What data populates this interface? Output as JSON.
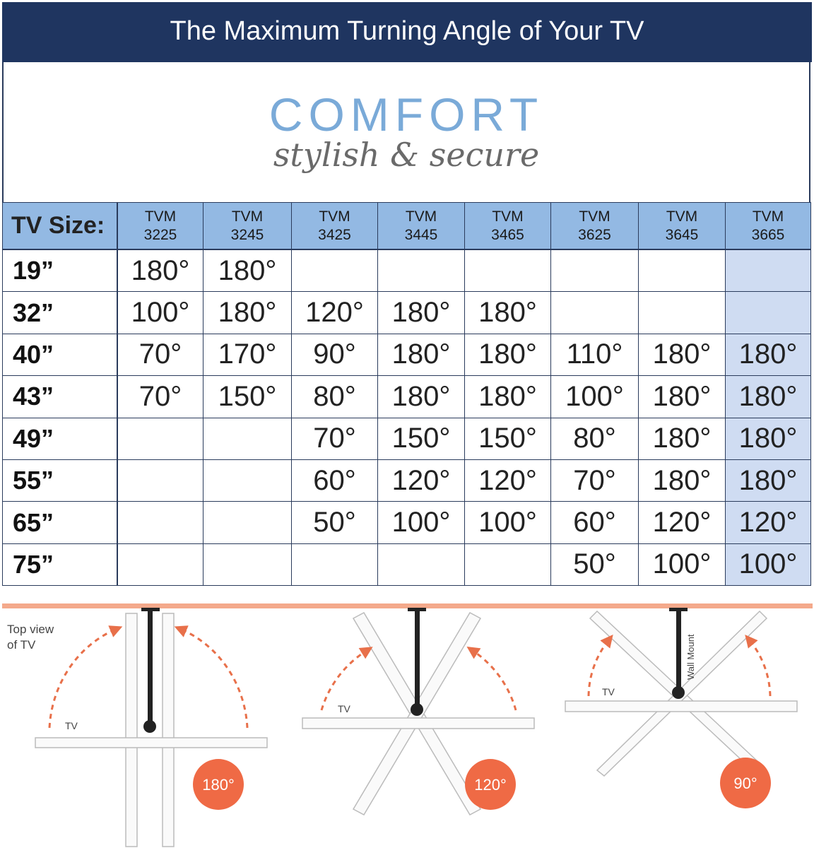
{
  "header": {
    "title": "The Maximum Turning Angle of Your TV"
  },
  "logo": {
    "brand": "COMFORT",
    "tagline": "stylish & secure"
  },
  "table": {
    "header_label": "TV Size:",
    "columns": [
      {
        "line1": "TVM",
        "line2": "3225"
      },
      {
        "line1": "TVM",
        "line2": "3245"
      },
      {
        "line1": "TVM",
        "line2": "3425"
      },
      {
        "line1": "TVM",
        "line2": "3445"
      },
      {
        "line1": "TVM",
        "line2": "3465"
      },
      {
        "line1": "TVM",
        "line2": "3625"
      },
      {
        "line1": "TVM",
        "line2": "3645"
      },
      {
        "line1": "TVM",
        "line2": "3665"
      }
    ],
    "rows": [
      {
        "size": "19”",
        "cells": [
          "180°",
          "180°",
          null,
          null,
          null,
          null,
          null,
          null
        ]
      },
      {
        "size": "32”",
        "cells": [
          "100°",
          "180°",
          "120°",
          "180°",
          "180°",
          null,
          null,
          null
        ]
      },
      {
        "size": "40”",
        "cells": [
          "70°",
          "170°",
          "90°",
          "180°",
          "180°",
          "110°",
          "180°",
          "180°"
        ]
      },
      {
        "size": "43”",
        "cells": [
          "70°",
          "150°",
          "80°",
          "180°",
          "180°",
          "100°",
          "180°",
          "180°"
        ]
      },
      {
        "size": "49”",
        "cells": [
          null,
          null,
          "70°",
          "150°",
          "150°",
          "80°",
          "180°",
          "180°"
        ]
      },
      {
        "size": "55”",
        "cells": [
          null,
          null,
          "60°",
          "120°",
          "120°",
          "70°",
          "180°",
          "180°"
        ]
      },
      {
        "size": "65”",
        "cells": [
          null,
          null,
          "50°",
          "100°",
          "100°",
          "60°",
          "120°",
          "120°"
        ]
      },
      {
        "size": "75”",
        "cells": [
          null,
          null,
          null,
          null,
          null,
          "50°",
          "100°",
          "100°"
        ]
      }
    ]
  },
  "diagrams": [
    {
      "caption_line1": "Top view",
      "caption_line2": "of TV",
      "tv_label": "TV",
      "angle": "180°"
    },
    {
      "tv_label": "TV",
      "angle": "120°"
    },
    {
      "tv_label": "TV",
      "mount_label": "Wall Mount",
      "angle": "90°"
    }
  ]
}
